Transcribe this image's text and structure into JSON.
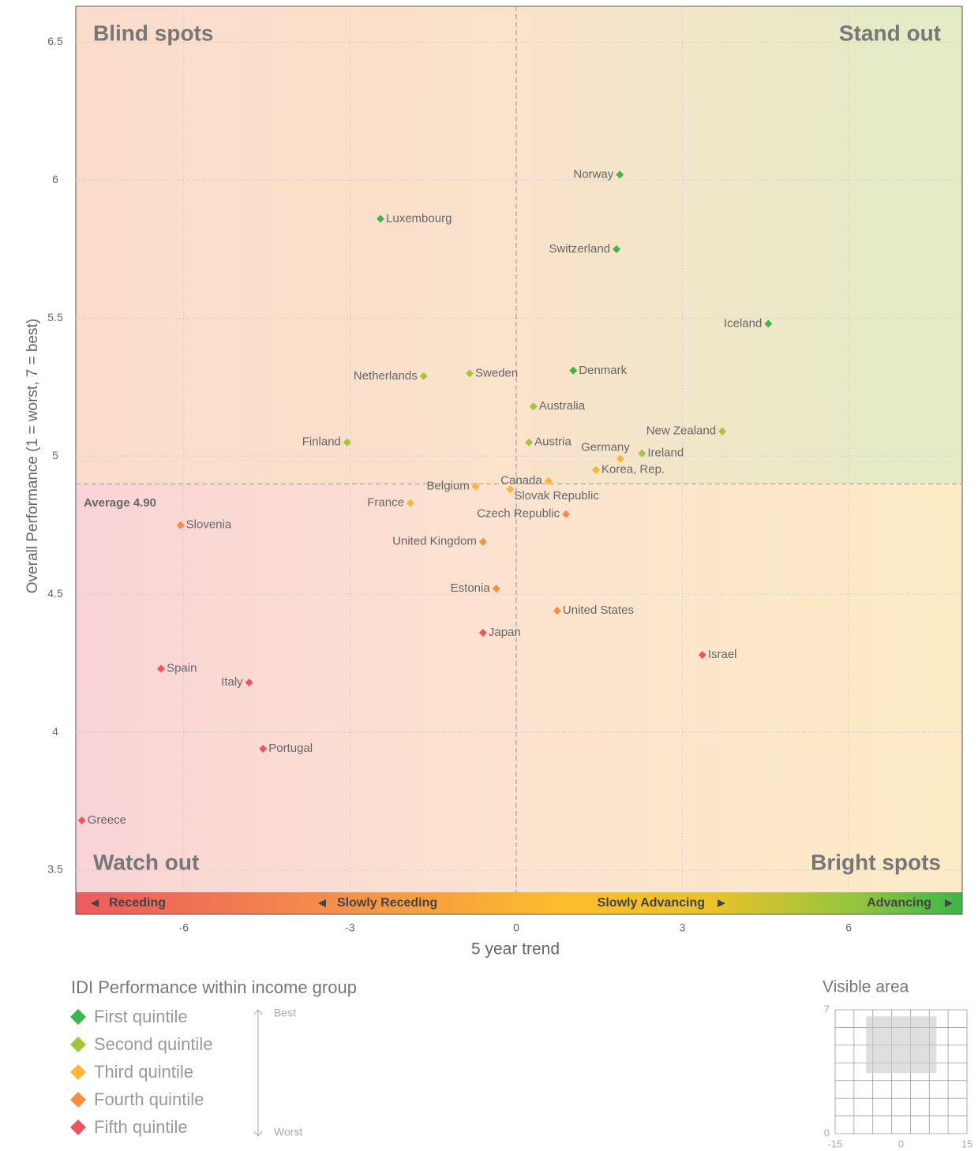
{
  "chart_data": {
    "type": "scatter",
    "xlabel": "5 year trend",
    "ylabel": "Overall Performance (1 = worst, 7 = best)",
    "xlim": [
      -7.95,
      8.05
    ],
    "ylim": [
      3.42,
      6.63
    ],
    "xticks": [
      -6,
      -3,
      0,
      3,
      6
    ],
    "yticks": [
      3.5,
      4,
      4.5,
      5,
      5.5,
      6,
      6.5
    ],
    "grid": true,
    "average": 4.9,
    "average_label": "Average 4.90",
    "quadrants": {
      "top_left": "Blind spots",
      "top_right": "Stand out",
      "bottom_left": "Watch out",
      "bottom_right": "Bright spots"
    },
    "trend_band": [
      "Receding",
      "Slowly Receding",
      "Slowly Advancing",
      "Advancing"
    ],
    "legend_title": "IDI Performance within income group",
    "legend_best": "Best",
    "legend_worst": "Worst",
    "series": [
      {
        "name": "First quintile",
        "color": "#3cb54a",
        "points": [
          "Norway",
          "Luxembourg",
          "Switzerland",
          "Iceland",
          "Denmark"
        ],
        "x": [
          1.87,
          -2.45,
          1.81,
          4.55,
          1.03
        ],
        "y": [
          6.02,
          5.86,
          5.75,
          5.48,
          5.31
        ]
      },
      {
        "name": "Second quintile",
        "color": "#a3c43b",
        "points": [
          "Sweden",
          "Netherlands",
          "Australia",
          "New Zealand",
          "Austria",
          "Finland",
          "Ireland"
        ],
        "x": [
          -0.84,
          -1.67,
          0.31,
          3.72,
          0.23,
          -3.05,
          2.27
        ],
        "y": [
          5.3,
          5.29,
          5.18,
          5.09,
          5.05,
          5.05,
          5.01
        ]
      },
      {
        "name": "Third quintile",
        "color": "#fbb731",
        "points": [
          "Germany",
          "Korea, Rep.",
          "Canada",
          "Belgium",
          "Slovak Republic",
          "France"
        ],
        "x": [
          1.88,
          1.44,
          0.58,
          -0.73,
          -0.11,
          -1.91
        ],
        "y": [
          4.99,
          4.95,
          4.91,
          4.89,
          4.88,
          4.83
        ]
      },
      {
        "name": "Fourth quintile",
        "color": "#f58d42",
        "points": [
          "Czech Republic",
          "Slovenia",
          "United Kingdom",
          "Estonia",
          "United States"
        ],
        "x": [
          0.9,
          -6.06,
          -0.6,
          -0.36,
          0.74
        ],
        "y": [
          4.79,
          4.75,
          4.69,
          4.52,
          4.44
        ]
      },
      {
        "name": "Fifth quintile",
        "color": "#ec5464",
        "points": [
          "Japan",
          "Israel",
          "Spain",
          "Italy",
          "Portugal",
          "Greece"
        ],
        "x": [
          -0.6,
          3.36,
          -6.41,
          -4.82,
          -4.57,
          -7.84
        ],
        "y": [
          4.36,
          4.28,
          4.23,
          4.18,
          3.94,
          3.68
        ]
      }
    ],
    "minimap": {
      "title": "Visible area",
      "xlim": [
        -15,
        15
      ],
      "ylim": [
        0,
        7
      ],
      "xticks": [
        -15,
        0,
        15
      ],
      "yticks": [
        0,
        7
      ]
    }
  }
}
